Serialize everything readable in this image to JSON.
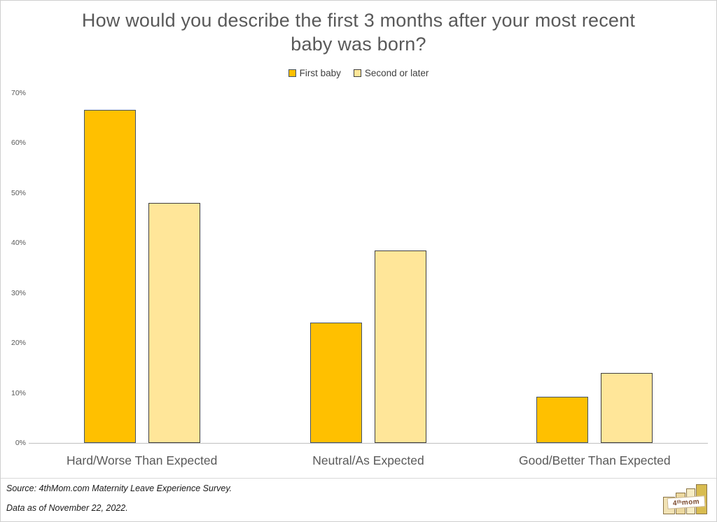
{
  "chart_data": {
    "type": "bar",
    "title": "How would you describe the first 3 months after your most recent baby was born?",
    "categories": [
      "Hard/Worse Than Expected",
      "Neutral/As Expected",
      "Good/Better Than Expected"
    ],
    "series": [
      {
        "name": "First baby",
        "color": "#FFC000",
        "border_color": "#44546A",
        "values": [
          66.7,
          24.1,
          9.2
        ]
      },
      {
        "name": "Second or later",
        "color": "#FFE699",
        "border_color": "#404040",
        "values": [
          48.0,
          38.5,
          14.0
        ]
      }
    ],
    "xlabel": "",
    "ylabel": "",
    "y_ticks": [
      "0%",
      "10%",
      "20%",
      "30%",
      "40%",
      "50%",
      "60%",
      "70%"
    ],
    "ylim": [
      0,
      70
    ],
    "grid": false,
    "legend_position": "top",
    "value_format": "percent"
  },
  "footer": {
    "source_line1": "Source: 4thMom.com Maternity Leave Experience Survey.",
    "source_line2": "Data as of November 22, 2022.",
    "logo_text": "4ᵗʰmom"
  }
}
